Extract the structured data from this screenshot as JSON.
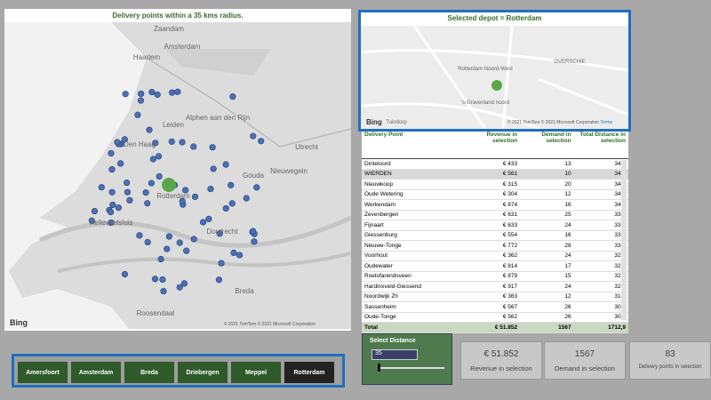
{
  "map_panel": {
    "title": "Delivery points within a 35 kms radius.",
    "labels": [
      "Amsterdam",
      "Haarlem",
      "Leiden",
      "Den Haag",
      "Rotterdam",
      "Utrecht",
      "Dordrecht",
      "Gouda",
      "Hellevoetsluis",
      "Roosendaal",
      "Breda",
      "Nieuwegein",
      "Zaandam",
      "Alphen aan den Rijn"
    ],
    "attribution": "© 2021 TomTom © 2021 Microsoft Corporation",
    "brand": "Bing"
  },
  "depot_panel": {
    "title": "Selected depot = Rotterdam",
    "labels": [
      "Rotterdam Noord-West",
      "'s-Gravenland noord",
      "OVERSCHIE",
      "Tuindorp"
    ],
    "attribution": "© 2021 TomTom © 2021 Microsoft Corporation",
    "terms": "Terms",
    "brand": "Bing"
  },
  "table": {
    "headers": [
      "Delivery Point",
      "Revenue in selection",
      "Demand in selection",
      "Total Distance in selection"
    ],
    "rows": [
      [
        "Dinteloord",
        "€ 433",
        "13",
        "34,9"
      ],
      [
        "WIERDEN",
        "€ 561",
        "10",
        "34,6"
      ],
      [
        "Nieuwkoop",
        "€ 315",
        "20",
        "34,5"
      ],
      [
        "Oude Wetering",
        "€ 304",
        "12",
        "34,2"
      ],
      [
        "Werkendam",
        "€ 874",
        "16",
        "34,1"
      ],
      [
        "Zevenbergen",
        "€ 631",
        "25",
        "33,9"
      ],
      [
        "Fijnaart",
        "€ 633",
        "24",
        "33,8"
      ],
      [
        "Giessenburg",
        "€ 554",
        "16",
        "33,6"
      ],
      [
        "Nieuwe-Tonge",
        "€ 772",
        "28",
        "33,1"
      ],
      [
        "Voorhout",
        "€ 362",
        "24",
        "32,8"
      ],
      [
        "Oudewater",
        "€ 814",
        "17",
        "32,6"
      ],
      [
        "Roelofarendsveen",
        "€ 879",
        "15",
        "32,1"
      ],
      [
        "Hardinxveld-Giessend",
        "€ 917",
        "24",
        "32,0"
      ],
      [
        "Noordwijk Zh",
        "€ 363",
        "12",
        "31,9"
      ],
      [
        "Sassenheim",
        "€ 567",
        "26",
        "30,8"
      ],
      [
        "Oude-Tonge",
        "€ 562",
        "26",
        "30,5"
      ]
    ],
    "total": [
      "Total",
      "€ 51.852",
      "1567",
      "1712,9"
    ]
  },
  "depot_buttons": [
    "Amersfoort",
    "Amsterdam",
    "Breda",
    "Driebergen",
    "Meppel",
    "Rotterdam"
  ],
  "distance_slicer": {
    "title": "Select Distance",
    "value": "35"
  },
  "cards": [
    {
      "value": "€ 51.852",
      "label": "Revenue in selection"
    },
    {
      "value": "1567",
      "label": "Demand in selection"
    },
    {
      "value": "83",
      "label": "Delivery points in selection"
    }
  ]
}
